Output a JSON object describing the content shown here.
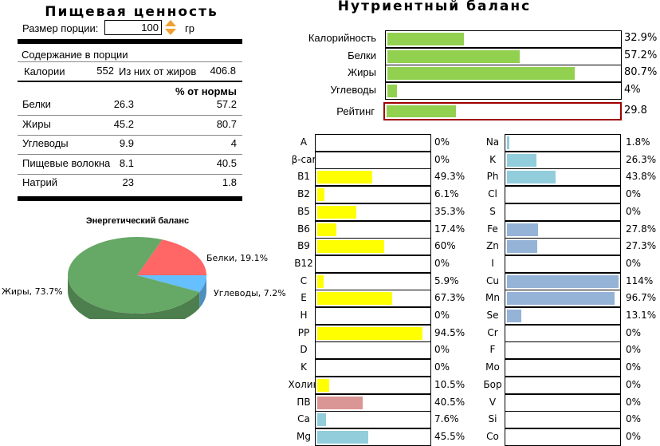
{
  "nutrition": {
    "title": "Пищевая ценность",
    "portion_label": "Размер порции:",
    "portion_value": "100",
    "portion_unit": "гр",
    "content_header": "Содержание в порции",
    "calories_label": "Калории",
    "calories_value": "552",
    "fat_cal_label": "Из них от жиров",
    "fat_cal_value": "406.8",
    "norm_header": "% от нормы",
    "rows": [
      {
        "name": "Белки",
        "value": "26.3",
        "pct": "57.2"
      },
      {
        "name": "Жиры",
        "value": "45.2",
        "pct": "80.7"
      },
      {
        "name": "Углеводы",
        "value": "9.9",
        "pct": "4"
      },
      {
        "name": "Пищевые волокна",
        "value": "8.1",
        "pct": "40.5"
      },
      {
        "name": "Натрий",
        "value": "23",
        "pct": "1.8"
      }
    ]
  },
  "chart_data": {
    "type": "pie",
    "title": "Энергетический баланс",
    "slices": [
      {
        "label": "Белки, 19.1%",
        "name": "Белки",
        "value": 19.1,
        "color": "#ff6666"
      },
      {
        "label": "Углеводы, 7.2%",
        "name": "Углеводы",
        "value": 7.2,
        "color": "#66bfff"
      },
      {
        "label": "Жиры, 73.7%",
        "name": "Жиры",
        "value": 73.7,
        "color": "#66a866"
      }
    ]
  },
  "balance": {
    "title": "Нутриентный баланс",
    "rows": [
      {
        "name": "Калорийность",
        "pct": 32.9,
        "text": "32.9%"
      },
      {
        "name": "Белки",
        "pct": 57.2,
        "text": "57.2%"
      },
      {
        "name": "Жиры",
        "pct": 80.7,
        "text": "80.7%"
      },
      {
        "name": "Углеводы",
        "pct": 4,
        "text": "4%"
      }
    ],
    "rating": {
      "name": "Рейтинг",
      "pct": 29.8,
      "text": "29.8"
    },
    "bar_color": "#92d050",
    "rating_border": "#a00000"
  },
  "vitamins": [
    {
      "name": "A",
      "pct": 0,
      "text": "0%",
      "color": "#ffff00"
    },
    {
      "name": "β-car",
      "pct": 0,
      "text": "0%",
      "color": "#ffff00"
    },
    {
      "name": "B1",
      "pct": 49.3,
      "text": "49.3%",
      "color": "#ffff00"
    },
    {
      "name": "B2",
      "pct": 6.1,
      "text": "6.1%",
      "color": "#ffff00"
    },
    {
      "name": "B5",
      "pct": 35.3,
      "text": "35.3%",
      "color": "#ffff00"
    },
    {
      "name": "B6",
      "pct": 17.4,
      "text": "17.4%",
      "color": "#ffff00"
    },
    {
      "name": "B9",
      "pct": 60,
      "text": "60%",
      "color": "#ffff00"
    },
    {
      "name": "B12",
      "pct": 0,
      "text": "0%",
      "color": "#ffff00"
    },
    {
      "name": "C",
      "pct": 5.9,
      "text": "5.9%",
      "color": "#ffff00"
    },
    {
      "name": "E",
      "pct": 67.3,
      "text": "67.3%",
      "color": "#ffff00"
    },
    {
      "name": "H",
      "pct": 0,
      "text": "0%",
      "color": "#ffff00"
    },
    {
      "name": "PP",
      "pct": 94.5,
      "text": "94.5%",
      "color": "#ffff00"
    },
    {
      "name": "D",
      "pct": 0,
      "text": "0%",
      "color": "#ffff00"
    },
    {
      "name": "K",
      "pct": 0,
      "text": "0%",
      "color": "#ffff00"
    },
    {
      "name": "Холин",
      "pct": 10.5,
      "text": "10.5%",
      "color": "#ffff00"
    },
    {
      "name": "ПВ",
      "pct": 40.5,
      "text": "40.5%",
      "color": "#da9694"
    },
    {
      "name": "Ca",
      "pct": 7.6,
      "text": "7.6%",
      "color": "#92cddc"
    },
    {
      "name": "Mg",
      "pct": 45.5,
      "text": "45.5%",
      "color": "#92cddc"
    }
  ],
  "minerals": [
    {
      "name": "Na",
      "pct": 1.8,
      "text": "1.8%",
      "color": "#92cddc"
    },
    {
      "name": "K",
      "pct": 26.3,
      "text": "26.3%",
      "color": "#92cddc"
    },
    {
      "name": "Ph",
      "pct": 43.8,
      "text": "43.8%",
      "color": "#92cddc"
    },
    {
      "name": "Cl",
      "pct": 0,
      "text": "0%",
      "color": "#92cddc"
    },
    {
      "name": "S",
      "pct": 0,
      "text": "0%",
      "color": "#92cddc"
    },
    {
      "name": "Fe",
      "pct": 27.8,
      "text": "27.8%",
      "color": "#95b3d7"
    },
    {
      "name": "Zn",
      "pct": 27.3,
      "text": "27.3%",
      "color": "#95b3d7"
    },
    {
      "name": "I",
      "pct": 0,
      "text": "0%",
      "color": "#95b3d7"
    },
    {
      "name": "Cu",
      "pct": 114,
      "text": "114%",
      "color": "#95b3d7"
    },
    {
      "name": "Mn",
      "pct": 96.7,
      "text": "96.7%",
      "color": "#95b3d7"
    },
    {
      "name": "Se",
      "pct": 13.1,
      "text": "13.1%",
      "color": "#95b3d7"
    },
    {
      "name": "Cr",
      "pct": 0,
      "text": "0%",
      "color": "#95b3d7"
    },
    {
      "name": "F",
      "pct": 0,
      "text": "0%",
      "color": "#95b3d7"
    },
    {
      "name": "Mo",
      "pct": 0,
      "text": "0%",
      "color": "#95b3d7"
    },
    {
      "name": "Бор",
      "pct": 0,
      "text": "0%",
      "color": "#95b3d7"
    },
    {
      "name": "V",
      "pct": 0,
      "text": "0%",
      "color": "#95b3d7"
    },
    {
      "name": "Si",
      "pct": 0,
      "text": "0%",
      "color": "#95b3d7"
    },
    {
      "name": "Co",
      "pct": 0,
      "text": "0%",
      "color": "#95b3d7"
    }
  ]
}
